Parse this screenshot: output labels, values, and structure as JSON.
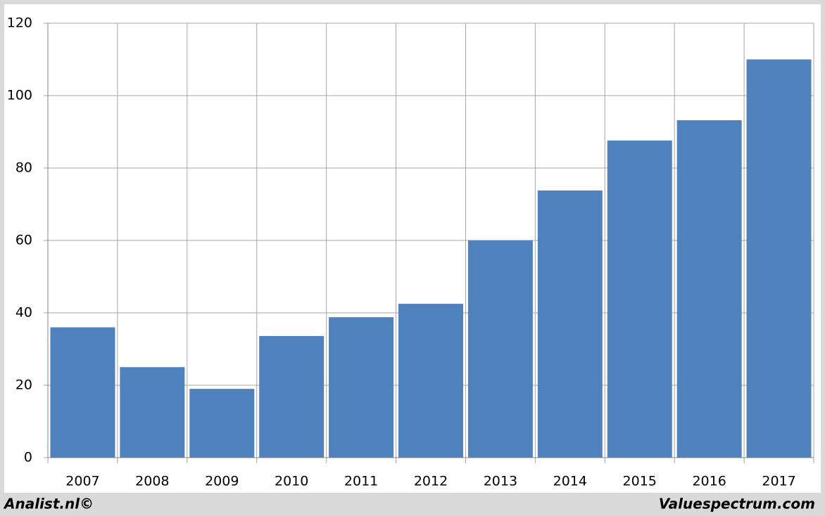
{
  "chart_data": {
    "type": "bar",
    "categories": [
      "2007",
      "2008",
      "2009",
      "2010",
      "2011",
      "2012",
      "2013",
      "2014",
      "2015",
      "2016",
      "2017"
    ],
    "values": [
      36,
      25,
      19,
      33.6,
      38.8,
      42.5,
      60,
      73.8,
      87.6,
      93.2,
      110
    ],
    "color": "#4f81bd",
    "ylim": [
      0,
      120
    ],
    "yticks": [
      0,
      20,
      40,
      60,
      80,
      100,
      120
    ],
    "grid": true,
    "annotations": [
      "Analist.nl©",
      "Valuespectrum.com"
    ]
  }
}
